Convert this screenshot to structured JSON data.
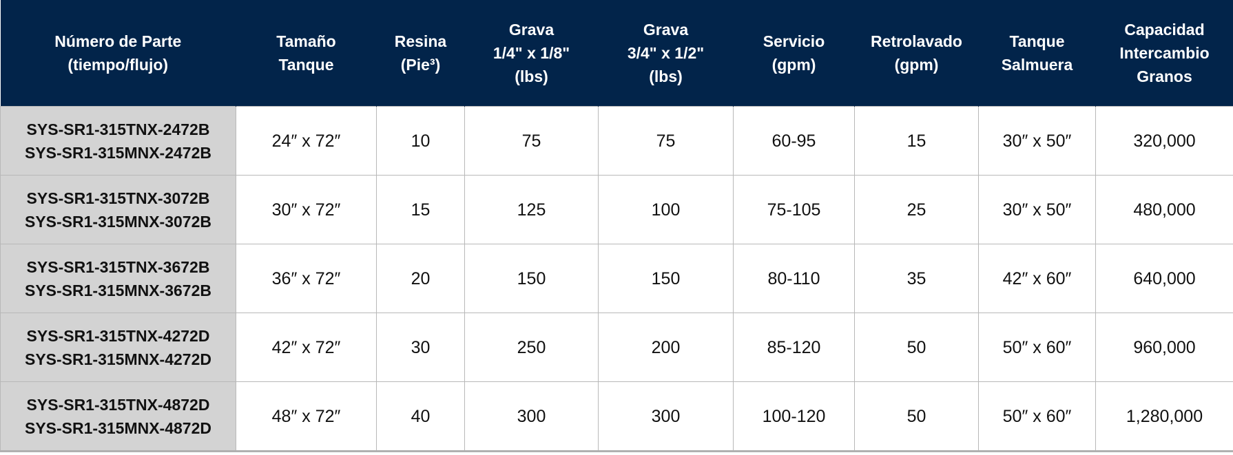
{
  "table": {
    "header": [
      [
        "Número de Parte",
        "(tiempo/flujo)"
      ],
      [
        "Tamaño",
        "Tanque"
      ],
      [
        "Resina",
        "(Pie³)"
      ],
      [
        "Grava",
        "1/4\" x 1/8\"",
        "(lbs)"
      ],
      [
        "Grava",
        "3/4\" x 1/2\"",
        "(lbs)"
      ],
      [
        "Servicio",
        "(gpm)"
      ],
      [
        "Retrolavado",
        "(gpm)"
      ],
      [
        "Tanque",
        "Salmuera"
      ],
      [
        "Capacidad",
        "Intercambio",
        "Granos"
      ]
    ],
    "rows": [
      [
        [
          "SYS-SR1-315TNX-2472B",
          "SYS-SR1-315MNX-2472B"
        ],
        "24″ x 72″",
        "10",
        "75",
        "75",
        "60-95",
        "15",
        "30″ x 50″",
        "320,000"
      ],
      [
        [
          "SYS-SR1-315TNX-3072B",
          "SYS-SR1-315MNX-3072B"
        ],
        "30″ x 72″",
        "15",
        "125",
        "100",
        "75-105",
        "25",
        "30″ x 50″",
        "480,000"
      ],
      [
        [
          "SYS-SR1-315TNX-3672B",
          "SYS-SR1-315MNX-3672B"
        ],
        "36″ x 72″",
        "20",
        "150",
        "150",
        "80-110",
        "35",
        "42″ x 60″",
        "640,000"
      ],
      [
        [
          "SYS-SR1-315TNX-4272D",
          "SYS-SR1-315MNX-4272D"
        ],
        "42″ x 72″",
        "30",
        "250",
        "200",
        "85-120",
        "50",
        "50″ x 60″",
        "960,000"
      ],
      [
        [
          "SYS-SR1-315TNX-4872D",
          "SYS-SR1-315MNX-4872D"
        ],
        "48″ x 72″",
        "40",
        "300",
        "300",
        "100-120",
        "50",
        "50″ x 60″",
        "1,280,000"
      ]
    ]
  }
}
